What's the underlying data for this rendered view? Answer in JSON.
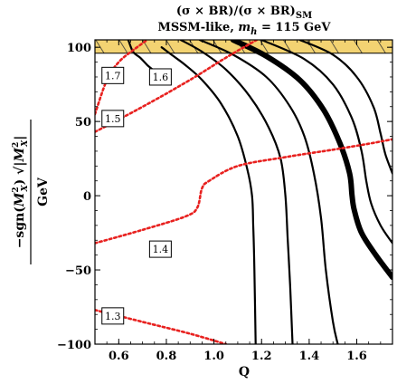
{
  "chart_data": {
    "type": "line",
    "title_line1": "(σ × BR)/(σ × BR)",
    "title_line1_sub": "SM",
    "title_line2_prefix": "MSSM-like, ",
    "title_line2_var": "m",
    "title_line2_var_sub": "h",
    "title_line2_suffix": " = 115 GeV",
    "xlabel": "Q",
    "ylabel_parts": {
      "prefix": "−sgn",
      "arg": "M",
      "arg_sub": "X",
      "arg_sup": "2",
      "sqrt_body": "M",
      "sqrt_sub": "X",
      "sqrt_sup": "2",
      "unit": "GeV"
    },
    "xlim": [
      0.5,
      1.75
    ],
    "ylim": [
      -100,
      105
    ],
    "x_ticks": [
      0.6,
      0.8,
      1.0,
      1.2,
      1.4,
      1.6
    ],
    "x_tick_labels": [
      "0.6",
      "0.8",
      "1.0",
      "1.2",
      "1.4",
      "1.6"
    ],
    "y_ticks": [
      -100,
      -50,
      0,
      50,
      100
    ],
    "y_tick_labels": [
      "−100",
      "−50",
      "0",
      "50",
      "100"
    ],
    "excluded_band": {
      "ymin": 96,
      "ymax": 105,
      "color": "#f3d372",
      "hatch_color": "#333333"
    },
    "solid_contours": [
      {
        "name": "",
        "thick": false,
        "points": [
          [
            0.64,
            105
          ],
          [
            0.66,
            97
          ],
          [
            0.69,
            93
          ],
          [
            0.72,
            88
          ],
          [
            0.75,
            84
          ]
        ]
      },
      {
        "name": "",
        "thick": false,
        "points": [
          [
            0.78,
            100
          ],
          [
            0.83,
            94
          ],
          [
            0.88,
            88
          ],
          [
            0.95,
            78
          ],
          [
            1.03,
            62
          ],
          [
            1.1,
            40
          ],
          [
            1.14,
            18
          ],
          [
            1.16,
            0
          ],
          [
            1.165,
            -20
          ],
          [
            1.17,
            -50
          ],
          [
            1.175,
            -100
          ]
        ]
      },
      {
        "name": "",
        "thick": false,
        "points": [
          [
            0.86,
            105
          ],
          [
            0.95,
            97
          ],
          [
            1.05,
            85
          ],
          [
            1.15,
            67
          ],
          [
            1.23,
            46
          ],
          [
            1.28,
            25
          ],
          [
            1.3,
            0
          ],
          [
            1.31,
            -30
          ],
          [
            1.32,
            -60
          ],
          [
            1.33,
            -100
          ]
        ]
      },
      {
        "name": "",
        "thick": false,
        "points": [
          [
            0.94,
            105
          ],
          [
            1.08,
            95
          ],
          [
            1.22,
            80
          ],
          [
            1.32,
            60
          ],
          [
            1.38,
            40
          ],
          [
            1.42,
            15
          ],
          [
            1.45,
            -15
          ],
          [
            1.47,
            -50
          ],
          [
            1.5,
            -85
          ],
          [
            1.52,
            -100
          ]
        ]
      },
      {
        "name": "",
        "thick": true,
        "points": [
          [
            1.08,
            105
          ],
          [
            1.22,
            94
          ],
          [
            1.36,
            78
          ],
          [
            1.46,
            58
          ],
          [
            1.53,
            35
          ],
          [
            1.57,
            15
          ],
          [
            1.58,
            0
          ],
          [
            1.59,
            -10
          ],
          [
            1.62,
            -25
          ],
          [
            1.68,
            -40
          ],
          [
            1.75,
            -55
          ]
        ]
      },
      {
        "name": "",
        "thick": false,
        "points": [
          [
            1.2,
            105
          ],
          [
            1.38,
            92
          ],
          [
            1.5,
            75
          ],
          [
            1.58,
            52
          ],
          [
            1.62,
            30
          ],
          [
            1.64,
            10
          ],
          [
            1.66,
            -5
          ],
          [
            1.7,
            -20
          ],
          [
            1.75,
            -32
          ]
        ]
      },
      {
        "name": "",
        "thick": false,
        "points": [
          [
            1.36,
            105
          ],
          [
            1.5,
            95
          ],
          [
            1.6,
            80
          ],
          [
            1.67,
            60
          ],
          [
            1.7,
            42
          ],
          [
            1.72,
            28
          ],
          [
            1.75,
            15
          ]
        ]
      }
    ],
    "dotted_contours": [
      {
        "name": "",
        "points": [
          [
            0.5,
            55
          ],
          [
            0.55,
            78
          ],
          [
            0.6,
            90
          ],
          [
            0.66,
            98
          ],
          [
            0.72,
            105
          ]
        ]
      },
      {
        "name": "",
        "points": [
          [
            0.5,
            43
          ],
          [
            0.62,
            53
          ],
          [
            0.78,
            67
          ],
          [
            0.92,
            80
          ],
          [
            1.05,
            93
          ],
          [
            1.18,
            105
          ]
        ]
      },
      {
        "name": "",
        "points": [
          [
            0.5,
            -32
          ],
          [
            0.7,
            -23
          ],
          [
            0.88,
            -14
          ],
          [
            0.93,
            -8
          ],
          [
            0.95,
            5
          ],
          [
            0.98,
            10
          ],
          [
            1.1,
            20
          ],
          [
            1.3,
            26
          ],
          [
            1.5,
            31
          ],
          [
            1.65,
            35
          ],
          [
            1.75,
            38
          ]
        ]
      },
      {
        "name": "",
        "points": [
          [
            0.5,
            -77
          ],
          [
            0.7,
            -85
          ],
          [
            0.9,
            -93
          ],
          [
            1.05,
            -100
          ]
        ]
      }
    ],
    "contour_labels": [
      {
        "text": "1.7",
        "x": 0.575,
        "y": 81
      },
      {
        "text": "1.6",
        "x": 0.775,
        "y": 80
      },
      {
        "text": "1.5",
        "x": 0.575,
        "y": 52
      },
      {
        "text": "1.4",
        "x": 0.775,
        "y": -36
      },
      {
        "text": "1.3",
        "x": 0.575,
        "y": -81
      }
    ],
    "grid": false,
    "dotted_color": "#e8211f",
    "solid_color": "#000000"
  }
}
